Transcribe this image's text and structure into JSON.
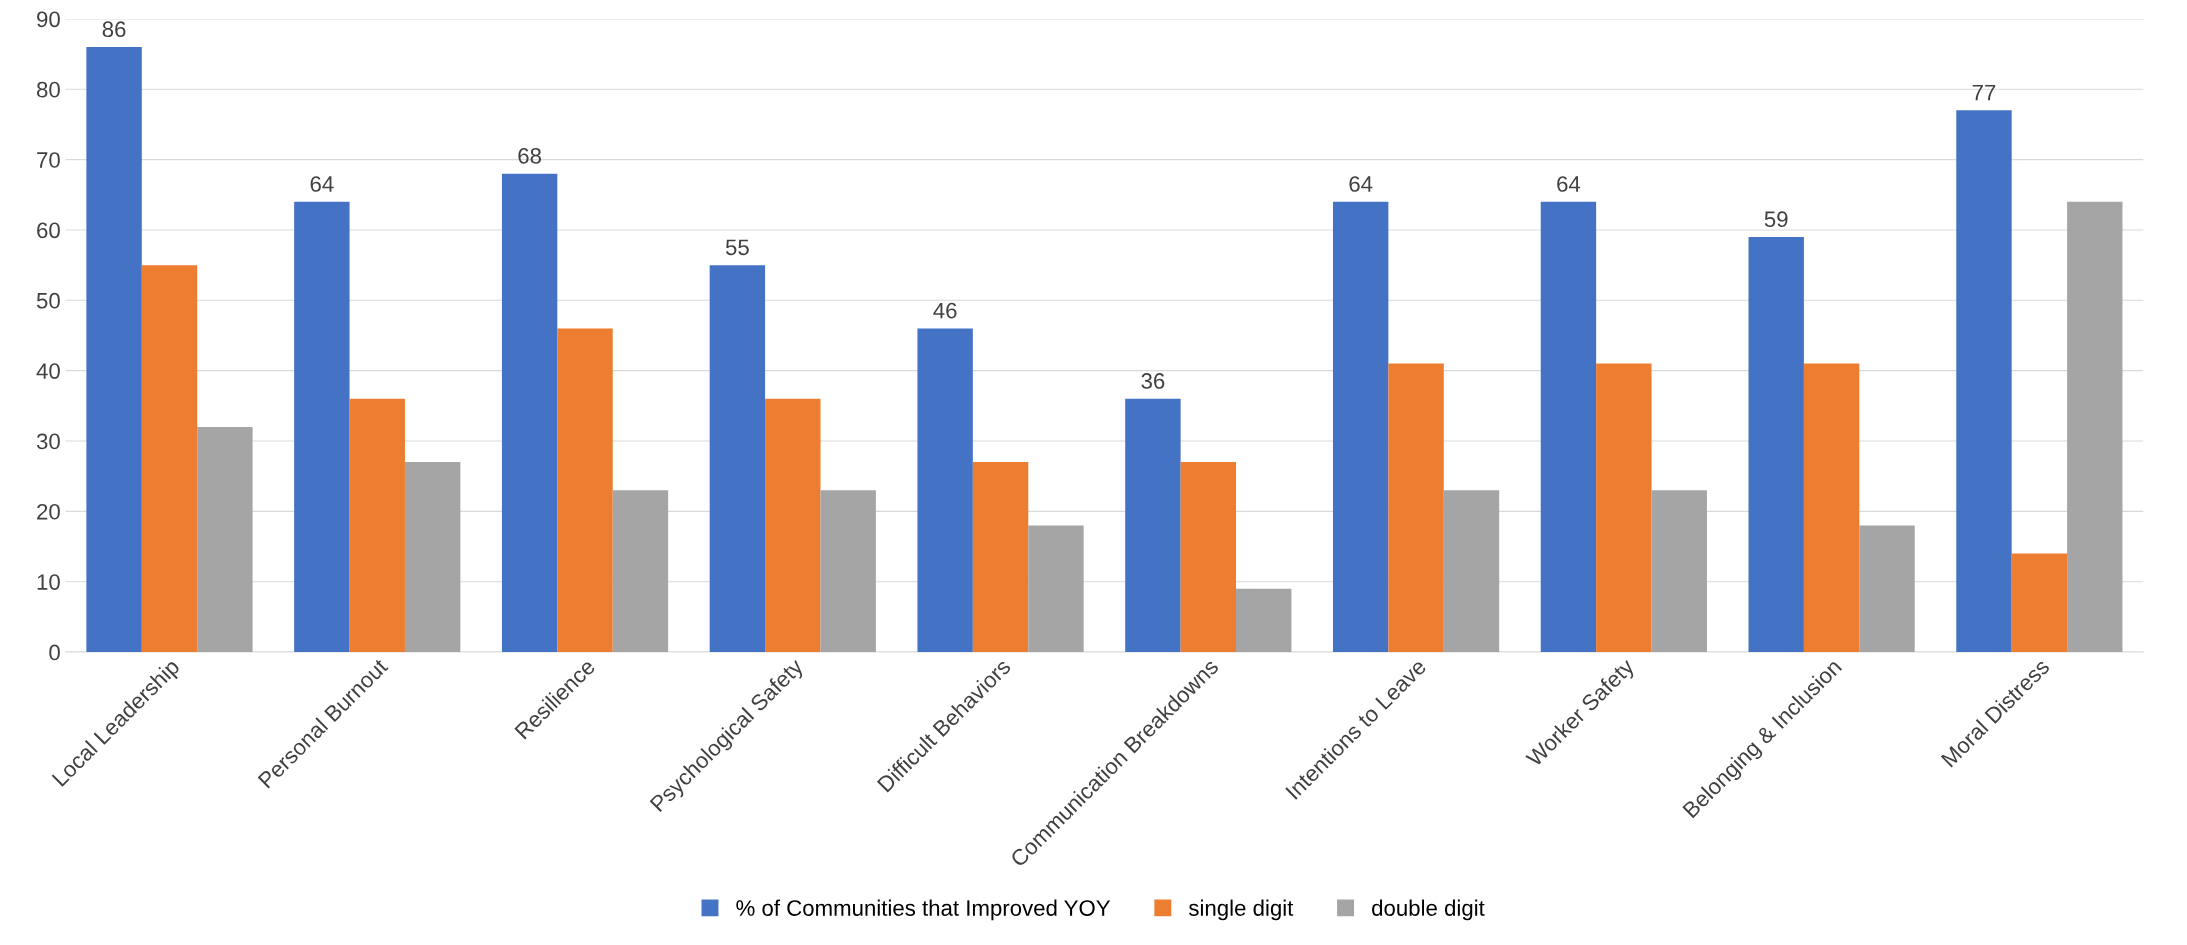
{
  "chart_data": {
    "type": "bar",
    "categories": [
      "Local Leadership",
      "Personal Burnout",
      "Resilience",
      "Psychological Safety",
      "Difficult Behaviors",
      "Communication Breakdowns",
      "Intentions to Leave",
      "Worker Safety",
      "Belonging & Inclusion",
      "Moral Distress"
    ],
    "series": [
      {
        "name": "% of Communities that Improved YOY",
        "color": "#4472c4",
        "values": [
          86,
          64,
          68,
          55,
          46,
          36,
          64,
          64,
          59,
          77
        ],
        "value_labels": [
          "86",
          "64",
          "68",
          "55",
          "46",
          "36",
          "64",
          "64",
          "59",
          "77"
        ]
      },
      {
        "name": "single digit",
        "color": "#ed7d31",
        "values": [
          55,
          36,
          46,
          36,
          27,
          27,
          41,
          41,
          41,
          14
        ]
      },
      {
        "name": "double digit",
        "color": "#a5a5a5",
        "values": [
          32,
          27,
          23,
          23,
          18,
          9,
          23,
          23,
          18,
          64
        ]
      }
    ],
    "ylim": [
      0,
      90
    ],
    "yticks": [
      0,
      10,
      20,
      30,
      40,
      50,
      60,
      70,
      80,
      90
    ],
    "grid": "y",
    "legend": "bottom"
  }
}
